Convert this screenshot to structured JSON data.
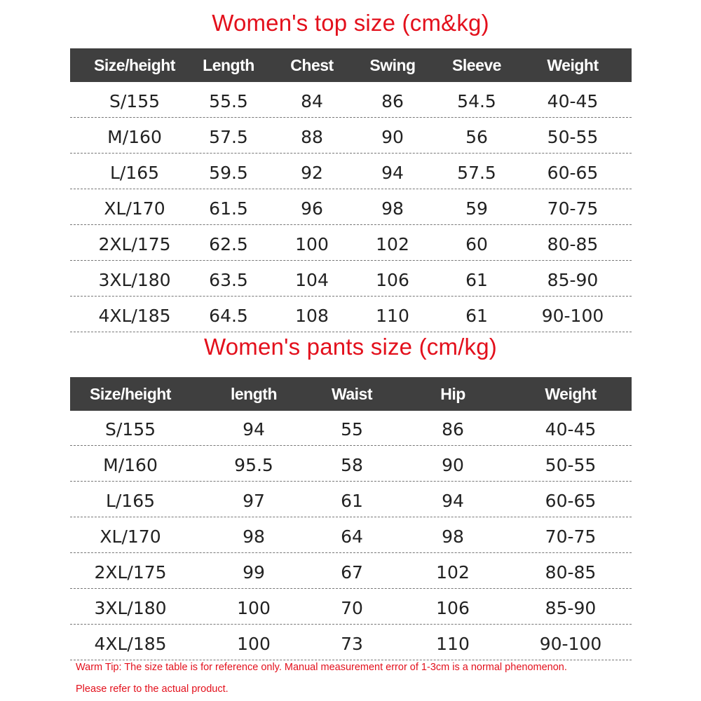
{
  "top": {
    "title": "Women's top size (cm&kg)",
    "headers": [
      "Size/height",
      "Length",
      "Chest",
      "Swing",
      "Sleeve",
      "Weight"
    ],
    "rows": [
      [
        "S/155",
        "55.5",
        "84",
        "86",
        "54.5",
        "40-45"
      ],
      [
        "M/160",
        "57.5",
        "88",
        "90",
        "56",
        "50-55"
      ],
      [
        "L/165",
        "59.5",
        "92",
        "94",
        "57.5",
        "60-65"
      ],
      [
        "XL/170",
        "61.5",
        "96",
        "98",
        "59",
        "70-75"
      ],
      [
        "2XL/175",
        "62.5",
        "100",
        "102",
        "60",
        "80-85"
      ],
      [
        "3XL/180",
        "63.5",
        "104",
        "106",
        "61",
        "85-90"
      ],
      [
        "4XL/185",
        "64.5",
        "108",
        "110",
        "61",
        "90-100"
      ]
    ]
  },
  "pants": {
    "title": "Women's pants size (cm/kg)",
    "headers": [
      "Size/height",
      "length",
      "Waist",
      "Hip",
      "Weight"
    ],
    "rows": [
      [
        "S/155",
        "94",
        "55",
        "86",
        "40-45"
      ],
      [
        "M/160",
        "95.5",
        "58",
        "90",
        "50-55"
      ],
      [
        "L/165",
        "97",
        "61",
        "94",
        "60-65"
      ],
      [
        "XL/170",
        "98",
        "64",
        "98",
        "70-75"
      ],
      [
        "2XL/175",
        "99",
        "67",
        "102",
        "80-85"
      ],
      [
        "3XL/180",
        "100",
        "70",
        "106",
        "85-90"
      ],
      [
        "4XL/185",
        "100",
        "73",
        "110",
        "90-100"
      ]
    ]
  },
  "tip": {
    "line1": "Warm Tip: The size table is for reference only. Manual measurement error of 1-3cm is a normal phenomenon.",
    "line2": "Please refer to the actual product."
  },
  "colors": {
    "title_red": "#e3101c",
    "header_bg": "#3f3f3f",
    "header_text": "#ffffff"
  }
}
